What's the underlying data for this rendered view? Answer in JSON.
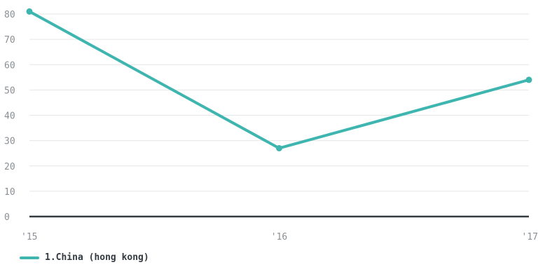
{
  "chart_data": {
    "type": "line",
    "title": "",
    "xlabel": "",
    "ylabel": "",
    "categories": [
      "'15",
      "'16",
      "'17"
    ],
    "ylim": [
      0,
      80
    ],
    "y_ticks": [
      0,
      10,
      20,
      30,
      40,
      50,
      60,
      70,
      80
    ],
    "grid": true,
    "legend_position": "bottom-left",
    "series": [
      {
        "name": "1.China (hong kong)",
        "color": "#3fb5b0",
        "values": [
          81,
          27,
          54
        ]
      }
    ]
  },
  "colors": {
    "grid": "#e6e6e6",
    "axis": "#333a40",
    "tick_text": "#8a8f94"
  }
}
